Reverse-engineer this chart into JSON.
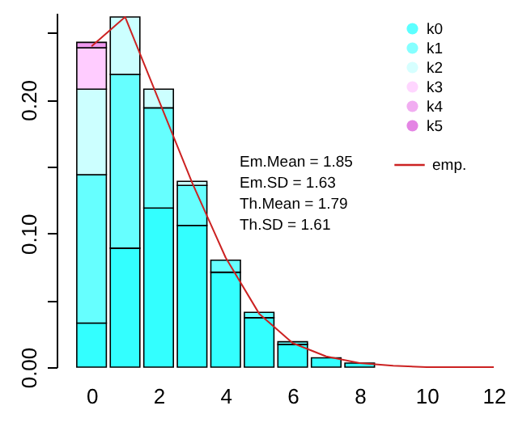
{
  "chart_data": {
    "type": "bar",
    "stacked": true,
    "x": [
      0,
      1,
      2,
      3,
      4,
      5,
      6,
      7,
      8,
      9,
      10,
      11,
      12
    ],
    "series": [
      {
        "name": "k0",
        "color": "#33ffff",
        "values": [
          0.033,
          0.089,
          0.119,
          0.106,
          0.071,
          0.037,
          0.017,
          0.007,
          0.003,
          null,
          null,
          null,
          null
        ]
      },
      {
        "name": "k1",
        "color": "#66ffff",
        "values": [
          0.111,
          0.13,
          0.075,
          0.03,
          0.009,
          0.004,
          0.002,
          null,
          null,
          null,
          null,
          null,
          null
        ]
      },
      {
        "name": "k2",
        "color": "#ccffff",
        "values": [
          0.064,
          0.043,
          0.014,
          0.003,
          null,
          null,
          null,
          null,
          null,
          null,
          null,
          null,
          null
        ]
      },
      {
        "name": "k3",
        "color": "#ffccff",
        "values": [
          0.031,
          null,
          null,
          null,
          null,
          null,
          null,
          null,
          null,
          null,
          null,
          null,
          null
        ]
      },
      {
        "name": "k4",
        "color": "#ee99ee",
        "values": [
          0.004,
          null,
          null,
          null,
          null,
          null,
          null,
          null,
          null,
          null,
          null,
          null,
          null
        ]
      },
      {
        "name": "k5",
        "color": "#dd66dd",
        "values": [
          null,
          null,
          null,
          null,
          null,
          null,
          null,
          null,
          null,
          null,
          null,
          null,
          null
        ]
      },
      {
        "name": "emp.",
        "type": "line",
        "color": "#cc2222",
        "values": [
          0.24,
          0.262,
          0.2,
          0.138,
          0.082,
          0.04,
          0.018,
          0.008,
          0.003,
          0.001,
          0,
          0,
          0
        ]
      }
    ],
    "xlim": [
      -0.8,
      12
    ],
    "xticks": [
      0,
      2,
      4,
      6,
      8,
      10,
      12
    ],
    "ylim": [
      0,
      0.265
    ],
    "yticks": [
      {
        "value": 0,
        "label": "0.00"
      },
      {
        "value": 0.05,
        "label": null
      },
      {
        "value": 0.1,
        "label": "0.10"
      },
      {
        "value": 0.15,
        "label": null
      },
      {
        "value": 0.2,
        "label": "0.20"
      },
      {
        "value": 0.25,
        "label": null
      }
    ],
    "annotations": [
      "Em.Mean = 1.85",
      "Em.SD = 1.63",
      "Th.Mean = 1.79",
      "Th.SD = 1.61"
    ],
    "legend": "top right",
    "line_style": "solid"
  }
}
